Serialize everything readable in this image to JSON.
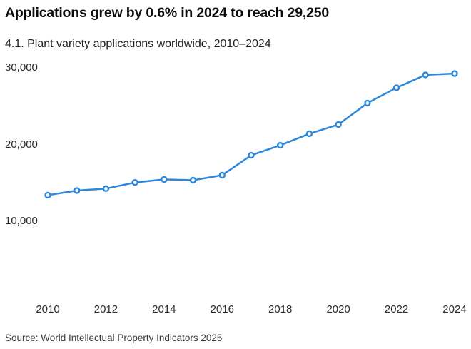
{
  "header": {
    "title": "Applications grew by 0.6% in 2024 to reach 29,250",
    "subtitle": "4.1. Plant variety applications worldwide, 2010–2024"
  },
  "source_note": "Source: World Intellectual Property Indicators 2025",
  "colors": {
    "line": "#2d87dc",
    "marker_fill": "#ffffff",
    "title_text": "#0d0d0d",
    "tick_text": "#2b2b2b"
  },
  "chart_data": {
    "type": "line",
    "title": "Applications grew by 0.6% in 2024 to reach 29,250",
    "subtitle": "4.1. Plant variety applications worldwide, 2010–2024",
    "xlabel": "",
    "ylabel": "",
    "x": [
      2010,
      2011,
      2012,
      2013,
      2014,
      2015,
      2016,
      2017,
      2018,
      2019,
      2020,
      2021,
      2022,
      2023,
      2024
    ],
    "series": [
      {
        "name": "Plant variety applications worldwide",
        "values": [
          13400,
          14000,
          14250,
          15050,
          15450,
          15350,
          16000,
          18600,
          19900,
          21400,
          22600,
          25400,
          27400,
          29080,
          29250
        ]
      }
    ],
    "x_tick_labels": [
      "2010",
      "2012",
      "2014",
      "2016",
      "2018",
      "2020",
      "2022",
      "2024"
    ],
    "y_ticks": [
      {
        "value": 30000,
        "label": "30,000"
      },
      {
        "value": 20000,
        "label": "20,000"
      },
      {
        "value": 10000,
        "label": "10,000"
      }
    ],
    "ylim": [
      0,
      30500
    ],
    "grid": false,
    "legend": "none",
    "marker": "open-circle"
  }
}
